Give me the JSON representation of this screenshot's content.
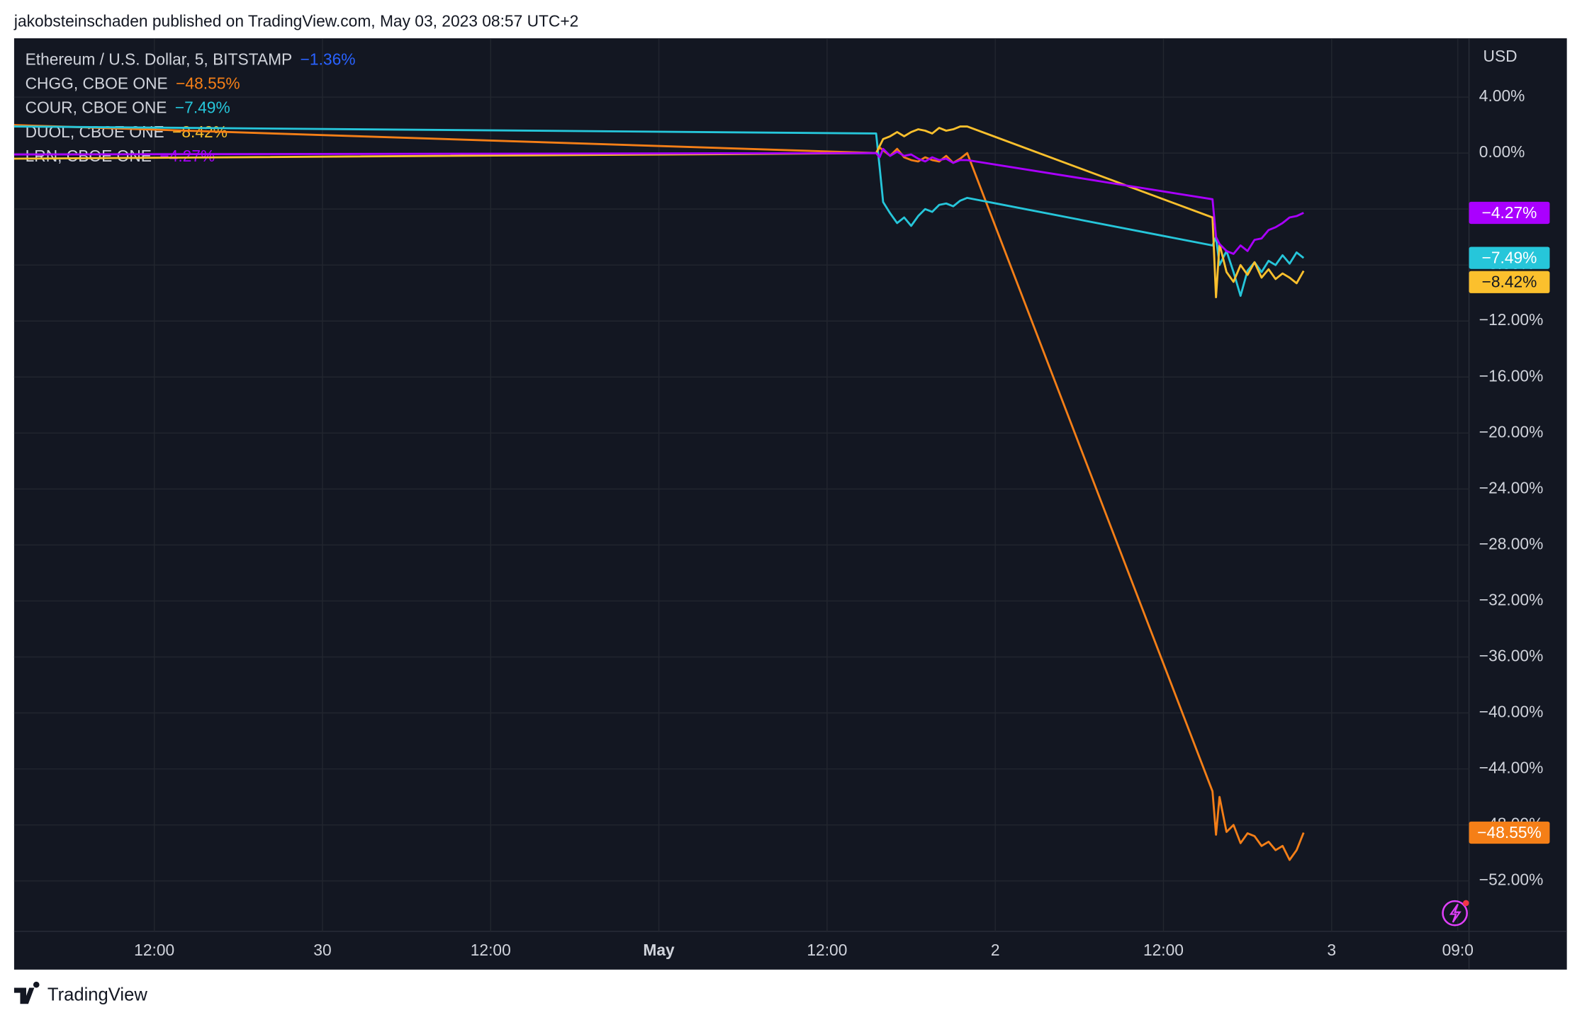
{
  "header": {
    "text": "jakobsteinschaden published on TradingView.com, May 03, 2023 08:57 UTC+2"
  },
  "footer": {
    "brand": "TradingView"
  },
  "chart_data": {
    "type": "line",
    "axis_unit": "USD",
    "main_symbol": {
      "name": "Ethereum / U.S. Dollar, 5, BITSTAMP",
      "color": "#2962ff",
      "last_label": "−1.36%"
    },
    "x": [
      2,
      63.5,
      63.75,
      64,
      64.5,
      65,
      65.5,
      66,
      66.5,
      67,
      67.5,
      68,
      68.5,
      69,
      69.5,
      70,
      87.5,
      87.75,
      88,
      88.5,
      89,
      89.5,
      90,
      90.5,
      91,
      91.5,
      92,
      92.5,
      93,
      93.5,
      94
    ],
    "xlim": [
      2,
      105.8
    ],
    "xticks": [
      {
        "value": 12,
        "label": "12:00"
      },
      {
        "value": 24,
        "label": "30"
      },
      {
        "value": 36,
        "label": "12:00"
      },
      {
        "value": 48,
        "label": "May"
      },
      {
        "value": 60,
        "label": "12:00"
      },
      {
        "value": 72,
        "label": "2"
      },
      {
        "value": 84,
        "label": "12:00"
      },
      {
        "value": 96,
        "label": "3"
      },
      {
        "value": 105,
        "label": "09:0"
      }
    ],
    "ylim": [
      -55.6,
      8.2
    ],
    "yticks": [
      {
        "value": 4,
        "label": "4.00%"
      },
      {
        "value": 0,
        "label": "0.00%"
      },
      {
        "value": -4,
        "label": "−4.00%"
      },
      {
        "value": -8,
        "label": "−8.00%"
      },
      {
        "value": -12,
        "label": "−12.00%"
      },
      {
        "value": -16,
        "label": "−16.00%"
      },
      {
        "value": -20,
        "label": "−20.00%"
      },
      {
        "value": -24,
        "label": "−24.00%"
      },
      {
        "value": -28,
        "label": "−28.00%"
      },
      {
        "value": -32,
        "label": "−32.00%"
      },
      {
        "value": -36,
        "label": "−36.00%"
      },
      {
        "value": -40,
        "label": "−40.00%"
      },
      {
        "value": -44,
        "label": "−44.00%"
      },
      {
        "value": -48,
        "label": "−48.00%"
      },
      {
        "value": -52,
        "label": "−52.00%"
      }
    ],
    "grid": true,
    "series": [
      {
        "name": "CHGG, CBOE ONE",
        "color": "#f57f17",
        "last_label": "−48.55%",
        "values": [
          2.0,
          0,
          0.4,
          0.2,
          -0.2,
          0.3,
          -0.3,
          -0.5,
          -0.6,
          -0.3,
          -0.5,
          -0.6,
          -0.2,
          -0.7,
          -0.4,
          0,
          -45.6,
          -48.7,
          -46.0,
          -48.5,
          -48.0,
          -49.3,
          -48.6,
          -48.8,
          -49.5,
          -49.2,
          -49.8,
          -49.5,
          -50.5,
          -49.8,
          -48.55
        ]
      },
      {
        "name": "COUR, CBOE ONE",
        "color": "#26c6da",
        "last_label": "−7.49%",
        "values": [
          1.9,
          1.4,
          -1.0,
          -3.5,
          -4.3,
          -5.0,
          -4.6,
          -5.2,
          -4.5,
          -4.0,
          -4.2,
          -3.7,
          -3.6,
          -3.8,
          -3.4,
          -3.2,
          -6.6,
          -6.0,
          -8.0,
          -7.0,
          -8.5,
          -10.2,
          -8.4,
          -7.8,
          -8.5,
          -7.7,
          -8.0,
          -7.3,
          -7.9,
          -7.1,
          -7.49
        ]
      },
      {
        "name": "DUOL, CBOE ONE",
        "color": "#fbc02d",
        "last_label": "−8.42%",
        "values": [
          -0.4,
          0,
          0.5,
          1.0,
          1.2,
          1.5,
          1.2,
          1.5,
          1.7,
          1.6,
          1.4,
          1.8,
          1.6,
          1.7,
          1.9,
          1.9,
          -4.6,
          -10.3,
          -6.5,
          -8.5,
          -9.2,
          -8.0,
          -8.7,
          -7.8,
          -8.9,
          -8.3,
          -9.0,
          -8.6,
          -8.9,
          -9.3,
          -8.42
        ]
      },
      {
        "name": "LRN, CBOE ONE",
        "color": "#aa00ff",
        "last_label": "−4.27%",
        "values": [
          -0.1,
          0,
          -0.3,
          0.3,
          -0.2,
          0.1,
          -0.2,
          -0.1,
          -0.4,
          -0.6,
          -0.3,
          -0.5,
          -0.4,
          -0.7,
          -0.5,
          -0.5,
          -3.3,
          -6.0,
          -6.5,
          -7.0,
          -7.2,
          -6.6,
          -7.0,
          -6.2,
          -6.1,
          -5.5,
          -5.3,
          -5.0,
          -4.6,
          -4.5,
          -4.27
        ]
      }
    ]
  }
}
